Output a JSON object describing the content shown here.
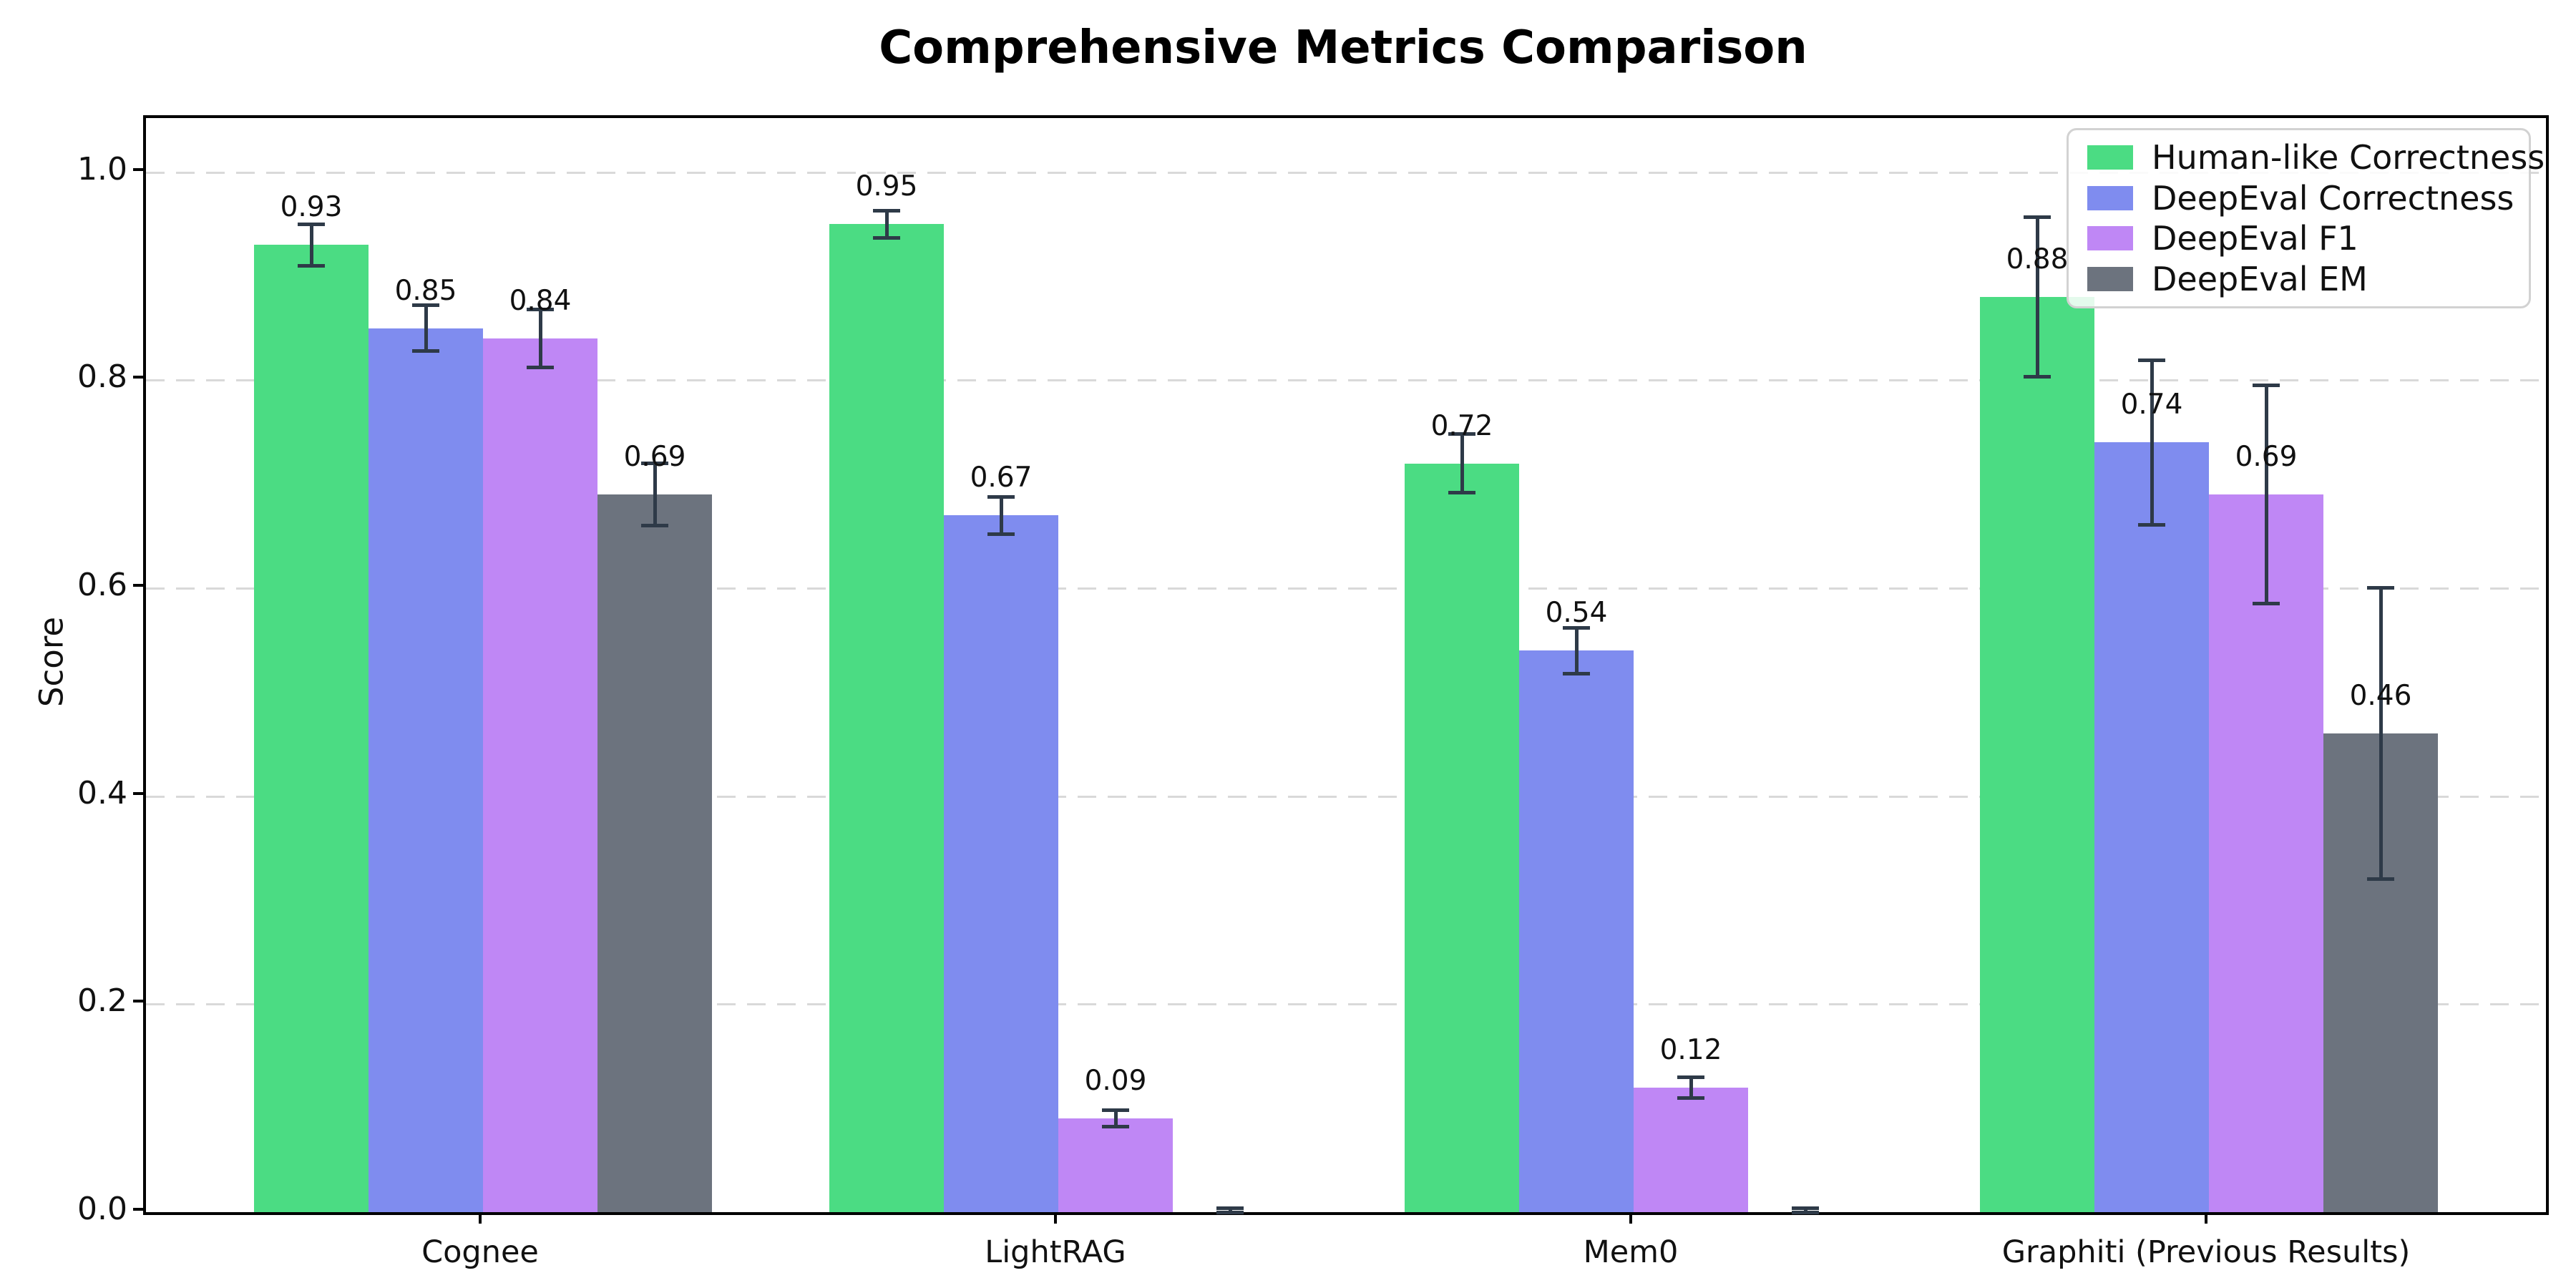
{
  "chart_data": {
    "type": "bar",
    "title": "Comprehensive Metrics Comparison",
    "ylabel": "Score",
    "xlabel": "",
    "categories": [
      "Cognee",
      "LightRAG",
      "Mem0",
      "Graphiti (Previous Results)"
    ],
    "series": [
      {
        "name": "Human-like Correctness",
        "color": "#4bdc83",
        "values": [
          0.93,
          0.95,
          0.72,
          0.88
        ],
        "errors": [
          0.02,
          0.013,
          0.028,
          0.077
        ],
        "labels": [
          "0.93",
          "0.95",
          "0.72",
          "0.88"
        ]
      },
      {
        "name": "DeepEval Correctness",
        "color": "#7f8cef",
        "values": [
          0.85,
          0.67,
          0.54,
          0.74
        ],
        "errors": [
          0.022,
          0.018,
          0.022,
          0.079
        ],
        "labels": [
          "0.85",
          "0.67",
          "0.54",
          "0.74"
        ]
      },
      {
        "name": "DeepEval F1",
        "color": "#bf87f5",
        "values": [
          0.84,
          0.09,
          0.12,
          0.69
        ],
        "errors": [
          0.028,
          0.008,
          0.01,
          0.105
        ],
        "labels": [
          "0.84",
          "0.09",
          "0.12",
          "0.69"
        ]
      },
      {
        "name": "DeepEval EM",
        "color": "#6c737e",
        "values": [
          0.69,
          0.0,
          0.0,
          0.46
        ],
        "errors": [
          0.03,
          0.004,
          0.004,
          0.14
        ],
        "labels": [
          "0.69",
          "",
          "",
          "0.46"
        ]
      }
    ],
    "yticks": [
      0.0,
      0.2,
      0.4,
      0.6,
      0.8,
      1.0
    ],
    "ytick_labels": [
      "0.0",
      "0.2",
      "0.4",
      "0.6",
      "0.8",
      "1.0"
    ],
    "ylim": [
      0,
      1.052
    ],
    "grid": {
      "axis": "y",
      "style": "dashed",
      "color": "#d9d9d9"
    },
    "error_color": "#2e3a48",
    "legend": {
      "location": "upper right"
    }
  }
}
